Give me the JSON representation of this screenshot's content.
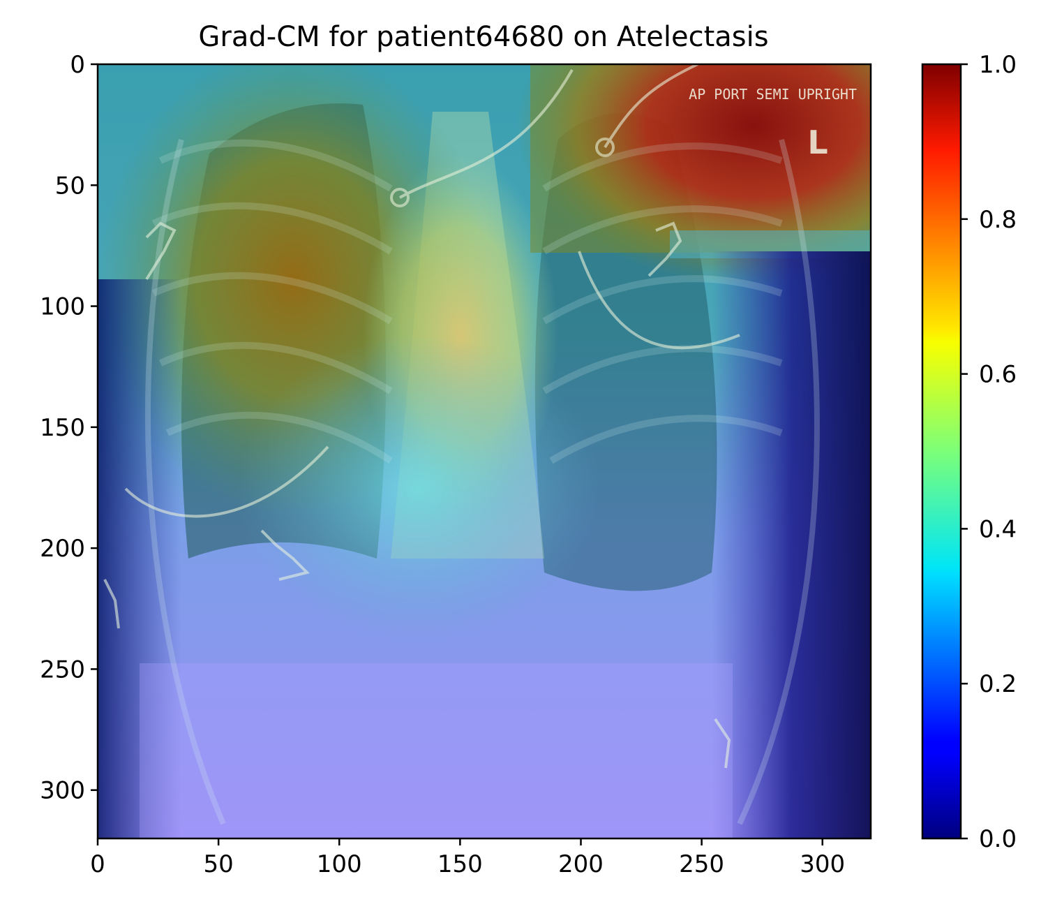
{
  "figure": {
    "title": "Grad-CM for patient64680 on Atelectasis",
    "image_description_kind": "chest x-ray with heatmap overlay",
    "burned_in_text": "AP PORT SEMI UPRIGHT",
    "side_marker": "L"
  },
  "axes": {
    "x_ticks": [
      "0",
      "50",
      "100",
      "150",
      "200",
      "250",
      "300"
    ],
    "y_ticks": [
      "0",
      "50",
      "100",
      "150",
      "200",
      "250",
      "300"
    ],
    "x_range": [
      0,
      320
    ],
    "y_range": [
      0,
      320
    ]
  },
  "colorbar": {
    "colormap": "jet",
    "range": [
      0,
      1
    ],
    "ticks": [
      "0.0",
      "0.2",
      "0.4",
      "0.6",
      "0.8",
      "1.0"
    ]
  },
  "heatmap": {
    "hotspots": [
      {
        "name": "upper-right apex",
        "x_center": 265,
        "y_center": 30,
        "intensity": 1.0
      },
      {
        "name": "right lung upper zone",
        "x_center": 80,
        "y_center": 110,
        "intensity": 0.75
      },
      {
        "name": "mediastinum",
        "x_center": 150,
        "y_center": 110,
        "intensity": 0.65
      }
    ]
  }
}
